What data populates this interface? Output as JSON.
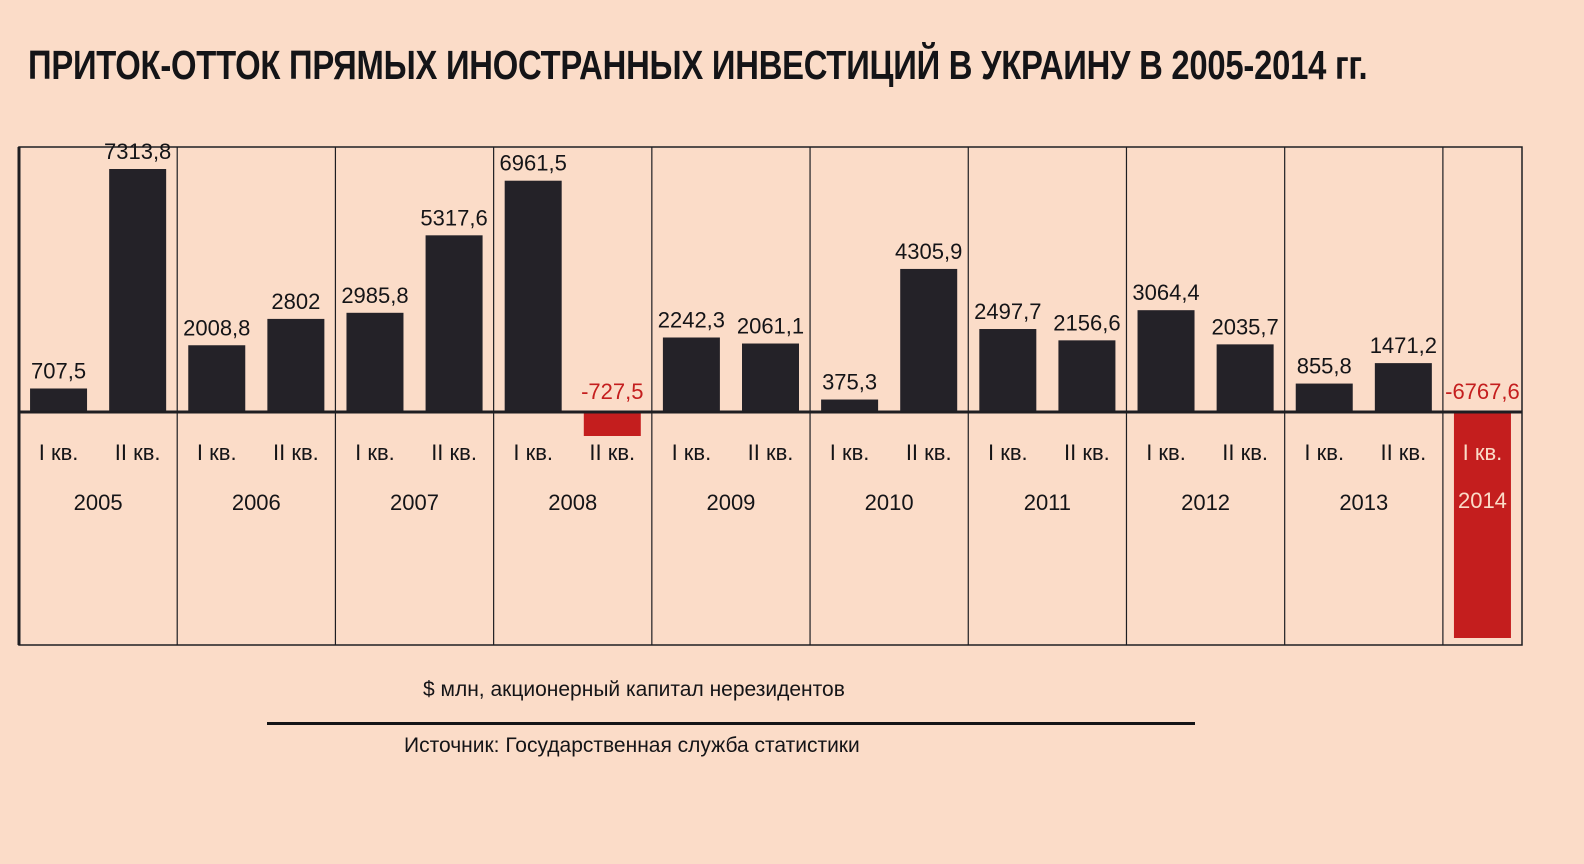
{
  "header": {
    "title": "ПРИТОК-ОТТОК ПРЯМЫХ ИНОСТРАННЫХ ИНВЕСТИЦИЙ В УКРАИНУ В 2005-2014 гг."
  },
  "footer": {
    "units": "$ млн, акционерный капитал нерезидентов",
    "source": "Источник: Государственная служба статистики"
  },
  "colors": {
    "background": "#fbdcc8",
    "bar": "#242228",
    "negative": "#c41e1e",
    "text": "#141417",
    "frame": "#1e1e22"
  },
  "chart_data": {
    "type": "bar",
    "title": "ПРИТОК-ОТТОК ПРЯМЫХ ИНОСТРАННЫХ ИНВЕСТИЦИЙ В УКРАИНУ В 2005-2014 гг.",
    "ylabel": "$ млн, акционерный капитал нерезидентов",
    "groups": [
      {
        "year": "2005",
        "bars": [
          {
            "quarter": "I кв.",
            "value": 707.5,
            "label": "707,5"
          },
          {
            "quarter": "II кв.",
            "value": 7313.8,
            "label": "7313,8"
          }
        ]
      },
      {
        "year": "2006",
        "bars": [
          {
            "quarter": "I кв.",
            "value": 2008.8,
            "label": "2008,8"
          },
          {
            "quarter": "II кв.",
            "value": 2802,
            "label": "2802"
          }
        ]
      },
      {
        "year": "2007",
        "bars": [
          {
            "quarter": "I кв.",
            "value": 2985.8,
            "label": "2985,8"
          },
          {
            "quarter": "II кв.",
            "value": 5317.6,
            "label": "5317,6"
          }
        ]
      },
      {
        "year": "2008",
        "bars": [
          {
            "quarter": "I кв.",
            "value": 6961.5,
            "label": "6961,5"
          },
          {
            "quarter": "II кв.",
            "value": -727.5,
            "label": "-727,5"
          }
        ]
      },
      {
        "year": "2009",
        "bars": [
          {
            "quarter": "I кв.",
            "value": 2242.3,
            "label": "2242,3"
          },
          {
            "quarter": "II кв.",
            "value": 2061.1,
            "label": "2061,1"
          }
        ]
      },
      {
        "year": "2010",
        "bars": [
          {
            "quarter": "I кв.",
            "value": 375.3,
            "label": "375,3"
          },
          {
            "quarter": "II кв.",
            "value": 4305.9,
            "label": "4305,9"
          }
        ]
      },
      {
        "year": "2011",
        "bars": [
          {
            "quarter": "I кв.",
            "value": 2497.7,
            "label": "2497,7"
          },
          {
            "quarter": "II кв.",
            "value": 2156.6,
            "label": "2156,6"
          }
        ]
      },
      {
        "year": "2012",
        "bars": [
          {
            "quarter": "I кв.",
            "value": 3064.4,
            "label": "3064,4"
          },
          {
            "quarter": "II кв.",
            "value": 2035.7,
            "label": "2035,7"
          }
        ]
      },
      {
        "year": "2013",
        "bars": [
          {
            "quarter": "I кв.",
            "value": 855.8,
            "label": "855,8"
          },
          {
            "quarter": "II кв.",
            "value": 1471.2,
            "label": "1471,2"
          }
        ]
      },
      {
        "year": "2014",
        "bars": [
          {
            "quarter": "I кв.",
            "value": -6767.6,
            "label": "-6767,6"
          }
        ]
      }
    ],
    "grid": false,
    "legend": "none"
  }
}
